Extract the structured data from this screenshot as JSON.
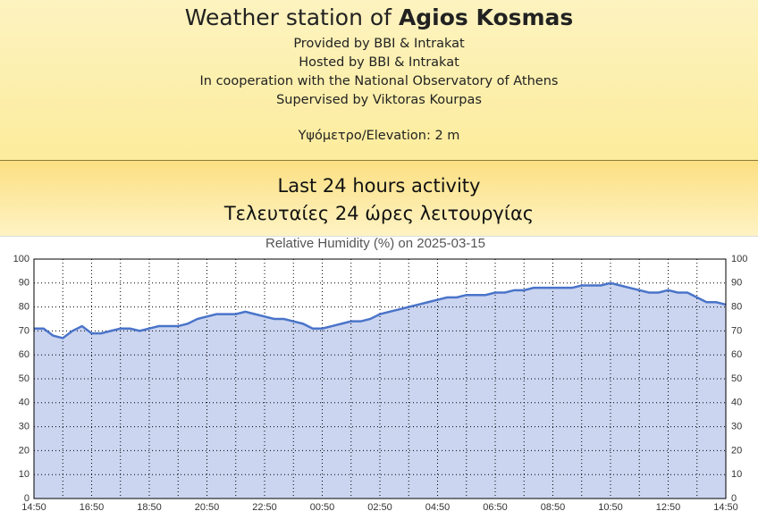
{
  "header": {
    "title": "Weather station of",
    "location": "Agios Kosmas",
    "lines": [
      "Provided by BBI & Intrakat",
      "Hosted by BBI & Intrakat",
      "In cooperation with the National Observatory of Athens",
      "Supervised by Viktoras Kourpas"
    ],
    "elevation": "Υψόμετρο/Elevation: 2 m"
  },
  "section": {
    "title": "Last 24 hours activity",
    "subtitle": "Τελευταίες 24 ώρες λειτουργίας"
  },
  "chart_data": {
    "type": "area",
    "title": "Relative Humidity (%) on 2025-03-15",
    "categories": [
      "14:50",
      null,
      null,
      null,
      null,
      null,
      "16:50",
      null,
      null,
      null,
      null,
      null,
      "18:50",
      null,
      null,
      null,
      null,
      null,
      "20:50",
      null,
      null,
      null,
      null,
      null,
      "22:50",
      null,
      null,
      null,
      null,
      null,
      "00:50",
      null,
      null,
      null,
      null,
      null,
      "02:50",
      null,
      null,
      null,
      null,
      null,
      "04:50",
      null,
      null,
      null,
      null,
      null,
      "06:50",
      null,
      null,
      null,
      null,
      null,
      "08:50",
      null,
      null,
      null,
      null,
      null,
      "10:50",
      null,
      null,
      null,
      null,
      null,
      "12:50",
      null,
      null,
      null,
      null,
      null,
      "14:50"
    ],
    "series": [
      {
        "name": "Relative Humidity",
        "color": "#4a74c9",
        "fill": "#cbd5f0",
        "values": [
          71,
          71,
          68,
          67,
          70,
          72,
          69,
          69,
          70,
          71,
          71,
          70,
          71,
          72,
          72,
          72,
          73,
          75,
          76,
          77,
          77,
          77,
          78,
          77,
          76,
          75,
          75,
          74,
          73,
          71,
          71,
          72,
          73,
          74,
          74,
          75,
          77,
          78,
          79,
          80,
          81,
          82,
          83,
          84,
          84,
          85,
          85,
          85,
          86,
          86,
          87,
          87,
          88,
          88,
          88,
          88,
          88,
          89,
          89,
          89,
          90,
          89,
          88,
          87,
          86,
          86,
          87,
          86,
          86,
          84,
          82,
          82,
          81
        ]
      }
    ],
    "ylim": [
      0,
      100
    ],
    "yticks": [
      0,
      10,
      20,
      30,
      40,
      50,
      60,
      70,
      80,
      90,
      100
    ],
    "grid": true
  }
}
